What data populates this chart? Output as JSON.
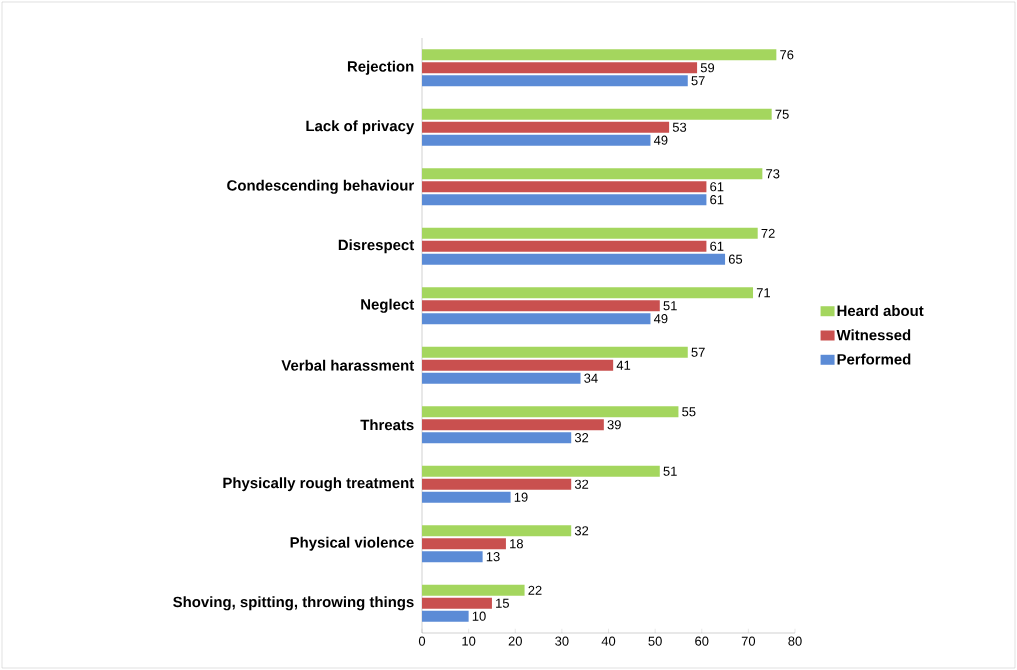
{
  "chart_data": {
    "type": "bar",
    "orientation": "horizontal",
    "categories": [
      "Rejection",
      "Lack of privacy",
      "Condescending behaviour",
      "Disrespect",
      "Neglect",
      "Verbal harassment",
      "Threats",
      "Physically rough treatment",
      "Physical violence",
      "Shoving, spitting, throwing things"
    ],
    "series": [
      {
        "name": "Heard about",
        "color": "#a4d65e",
        "values": [
          76,
          75,
          73,
          72,
          71,
          57,
          55,
          51,
          32,
          22
        ]
      },
      {
        "name": "Witnessed",
        "color": "#c9504f",
        "values": [
          59,
          53,
          61,
          61,
          51,
          41,
          39,
          32,
          18,
          15
        ]
      },
      {
        "name": "Performed",
        "color": "#5b8bd6",
        "values": [
          57,
          49,
          61,
          65,
          49,
          34,
          32,
          19,
          13,
          10
        ]
      }
    ],
    "xlim": [
      0,
      80
    ],
    "xticks": [
      0,
      10,
      20,
      30,
      40,
      50,
      60,
      70,
      80
    ],
    "data_labels": true,
    "legend": "right",
    "grid": false
  }
}
